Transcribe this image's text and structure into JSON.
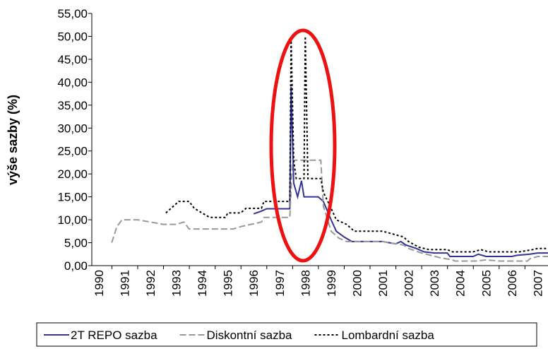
{
  "chart_data": {
    "type": "line",
    "ylabel": "výše sazby (%)",
    "xlim": [
      1989.73,
      2007.4
    ],
    "xticks": [
      1990,
      1991,
      1992,
      1993,
      1994,
      1995,
      1996,
      1997,
      1998,
      1999,
      2000,
      2001,
      2002,
      2003,
      2004,
      2005,
      2006,
      2007
    ],
    "ylim": [
      0,
      55
    ],
    "yticks": [
      {
        "value": 0,
        "label": "0,00"
      },
      {
        "value": 5,
        "label": "5,00"
      },
      {
        "value": 10,
        "label": "10,00"
      },
      {
        "value": 15,
        "label": "15,00"
      },
      {
        "value": 20,
        "label": "20,00"
      },
      {
        "value": 25,
        "label": "25,00"
      },
      {
        "value": 30,
        "label": "30,00"
      },
      {
        "value": 35,
        "label": "35,00"
      },
      {
        "value": 40,
        "label": "40,00"
      },
      {
        "value": 45,
        "label": "45,00"
      },
      {
        "value": 50,
        "label": "50,00"
      },
      {
        "value": 55,
        "label": "55,00"
      }
    ],
    "legend": "bottom",
    "series": [
      {
        "name": "2T REPO sazba",
        "color": "#333399",
        "dash": "solid",
        "x": [
          1996.0,
          1996.3,
          1996.5,
          1997.4,
          1997.45,
          1997.55,
          1997.7,
          1997.85,
          1997.95,
          1998.5,
          1998.7,
          1999.0,
          1999.2,
          1999.5,
          1999.8,
          2001.0,
          2001.5,
          2001.7,
          2001.9,
          2002.3,
          2002.6,
          2003.0,
          2003.5,
          2003.6,
          2004.5,
          2004.7,
          2005.0,
          2006.0,
          2006.2,
          2006.7,
          2007.0,
          2007.4
        ],
        "values": [
          11.3,
          11.9,
          12.4,
          12.4,
          39,
          18,
          15,
          18.5,
          15,
          15,
          14,
          10,
          7.5,
          6.25,
          5.25,
          5.25,
          4.75,
          5.25,
          4.5,
          3.75,
          3,
          2.75,
          2.75,
          2,
          2,
          2.5,
          2,
          2,
          2.25,
          2.5,
          2.75,
          2.75
        ]
      },
      {
        "name": "Diskontní sazba",
        "color": "#999999",
        "dash": "dash",
        "x": [
          1990.5,
          1990.7,
          1990.9,
          1991.5,
          1992.0,
          1992.5,
          1993.0,
          1993.3,
          1993.5,
          1995.2,
          1995.5,
          1996.3,
          1996.4,
          1997.4,
          1997.5,
          1998.6,
          1998.7,
          1999.0,
          1999.3,
          1999.6,
          2001.0,
          2001.8,
          2002.0,
          2002.5,
          2003.2,
          2003.7,
          2003.8,
          2004.6,
          2005.0,
          2005.5,
          2006.6,
          2006.7,
          2007.0,
          2007.4
        ],
        "values": [
          5,
          8.5,
          10,
          10,
          9.5,
          9,
          9,
          9.5,
          8,
          8,
          8.5,
          9.5,
          10.5,
          10.5,
          23,
          23,
          13,
          7.5,
          6,
          5.25,
          5.25,
          4.5,
          3.75,
          2.75,
          1.75,
          1.25,
          1,
          1,
          1.25,
          1,
          1,
          1.5,
          2,
          2
        ]
      },
      {
        "name": "Lombardní sazba",
        "color": "#000000",
        "dash": "dot",
        "x": [
          1992.6,
          1993.1,
          1993.5,
          1993.7,
          1994.0,
          1994.3,
          1994.9,
          1995.0,
          1995.5,
          1995.7,
          1996.3,
          1996.4,
          1997.4,
          1997.45,
          1997.55,
          1997.65,
          1997.95,
          1998.0,
          1998.1,
          1998.6,
          1998.7,
          1999.0,
          1999.2,
          1999.6,
          1999.9,
          2001.0,
          2001.8,
          2002.0,
          2002.4,
          2002.8,
          2003.5,
          2003.7,
          2004.5,
          2004.8,
          2005.1,
          2006.3,
          2006.8,
          2007.0,
          2007.4
        ],
        "values": [
          11.5,
          14,
          14,
          12.5,
          11.5,
          10.5,
          10.5,
          11.5,
          11.5,
          12.5,
          12.5,
          14,
          14,
          50,
          23,
          19,
          19,
          50,
          19,
          19,
          16,
          12.5,
          10,
          9,
          7.5,
          7.5,
          6.25,
          5.25,
          4,
          3.5,
          3.5,
          3,
          3,
          3.5,
          3,
          3,
          3.5,
          3.75,
          3.75
        ]
      }
    ]
  }
}
